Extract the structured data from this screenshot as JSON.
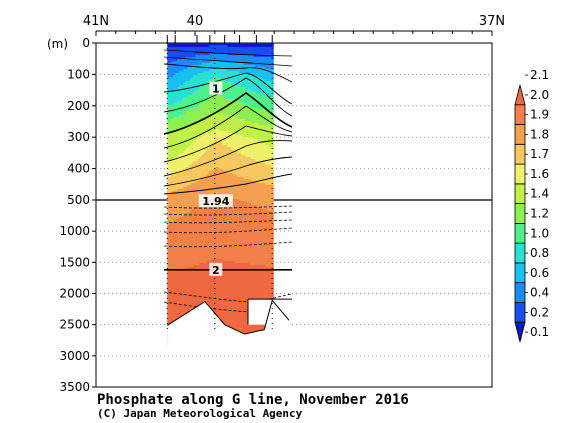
{
  "chart_data": {
    "type": "heatmap",
    "title": "Phosphate along G line, November 2016",
    "credit": "(C) Japan Meteorological Agency",
    "ylabel": "(m)",
    "x_ticks": [
      {
        "value": 41,
        "label": "41N"
      },
      {
        "value": 40,
        "label": "40"
      },
      {
        "value": 37,
        "label": "37N"
      }
    ],
    "x_range": [
      41,
      37
    ],
    "y_ticks_upper": [
      0,
      100,
      200,
      300,
      400,
      500
    ],
    "y_ticks_lower": [
      1000,
      1500,
      2000,
      2500,
      3000,
      3500
    ],
    "y_break": 500,
    "station_lats": [
      40.28,
      40.2,
      39.98,
      39.85,
      39.7,
      39.55,
      39.38,
      39.22
    ],
    "colorbar": {
      "levels": [
        0.1,
        0.2,
        0.4,
        0.6,
        0.8,
        1.0,
        1.2,
        1.4,
        1.6,
        1.7,
        1.8,
        1.9,
        2.0,
        2.1
      ],
      "colors": [
        "#0a1acb",
        "#1a4df0",
        "#1a8df5",
        "#17c0f0",
        "#2ae0d0",
        "#4ef08a",
        "#8ef050",
        "#c0f04a",
        "#eef06a",
        "#f7c860",
        "#f5a050",
        "#f28048",
        "#ef6840"
      ]
    },
    "contour_labels": [
      {
        "text": "1",
        "lat": 39.8,
        "depth": 145
      },
      {
        "text": "1.94",
        "lat": 39.8,
        "depth": 520
      },
      {
        "text": "2",
        "lat": 39.8,
        "depth": 1620
      }
    ],
    "section_profile": [
      {
        "lat": 40.28,
        "value_surface": 0.15,
        "value_100": 0.55,
        "value_300": 1.45,
        "value_500": 1.85,
        "value_2000": 2.05
      },
      {
        "lat": 39.8,
        "value_surface": 0.15,
        "value_100": 1.0,
        "value_300": 1.7,
        "value_500": 1.92,
        "value_2000": 2.05
      },
      {
        "lat": 39.22,
        "value_surface": 0.15,
        "value_100": 0.7,
        "value_300": 1.55,
        "value_500": 1.88,
        "value_2000": 2.05
      }
    ],
    "bottom_depths": [
      {
        "lat": 40.28,
        "depth": 2510
      },
      {
        "lat": 39.9,
        "depth": 2130
      },
      {
        "lat": 39.7,
        "depth": 2500
      },
      {
        "lat": 39.5,
        "depth": 2650
      },
      {
        "lat": 39.3,
        "depth": 2580
      },
      {
        "lat": 39.22,
        "depth": 2110
      },
      {
        "lat": 39.05,
        "depth": 2430
      }
    ]
  }
}
